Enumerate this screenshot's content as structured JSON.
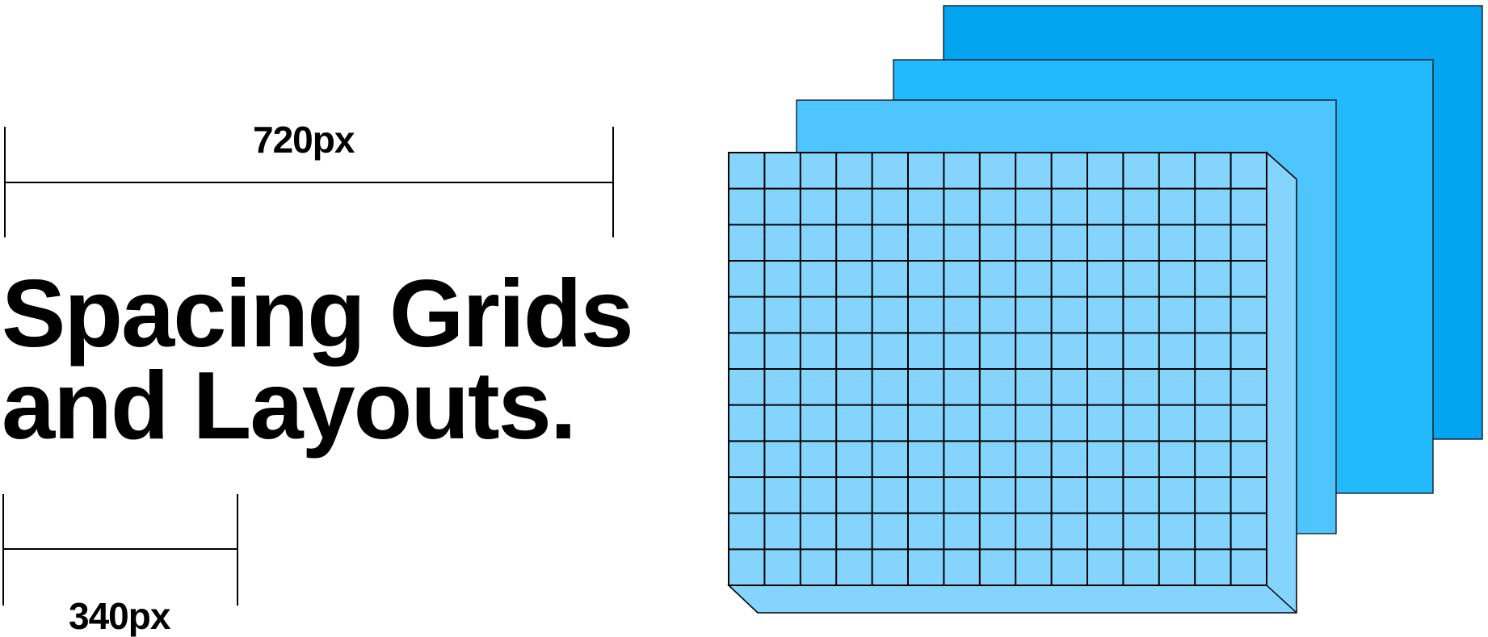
{
  "measure_top": {
    "label": "720px"
  },
  "measure_bottom": {
    "label": "340px"
  },
  "title": {
    "line1": "Spacing Grids",
    "line2": "and Layouts."
  },
  "colors": {
    "layer_back": "#03a4f0",
    "layer_mid": "#22b9fd",
    "layer_front": "#4ec6fd",
    "grid_face": "#84d4fd",
    "grid_side": "#84d4fd",
    "line": "#000000"
  },
  "grid": {
    "columns": 15,
    "rows": 12
  }
}
